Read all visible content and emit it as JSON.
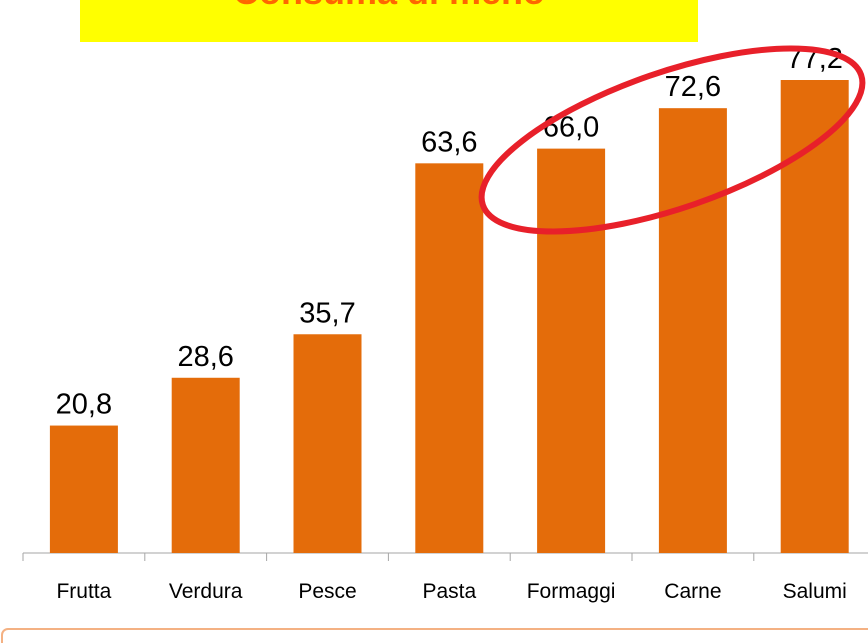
{
  "chart_data": {
    "type": "bar",
    "title": "Consuma di meno",
    "categories": [
      "Frutta",
      "Verdura",
      "Pesce",
      "Pasta",
      "Formaggi",
      "Carne",
      "Salumi"
    ],
    "values": [
      20.8,
      28.6,
      35.7,
      63.6,
      66.0,
      72.6,
      77.2
    ],
    "value_labels": [
      "20,8",
      "28,6",
      "35,7",
      "63,6",
      "66,0",
      "72,6",
      "77,2"
    ],
    "color": "#e46c0a",
    "title_color": "#ff6600",
    "title_background": "#ffff00"
  }
}
